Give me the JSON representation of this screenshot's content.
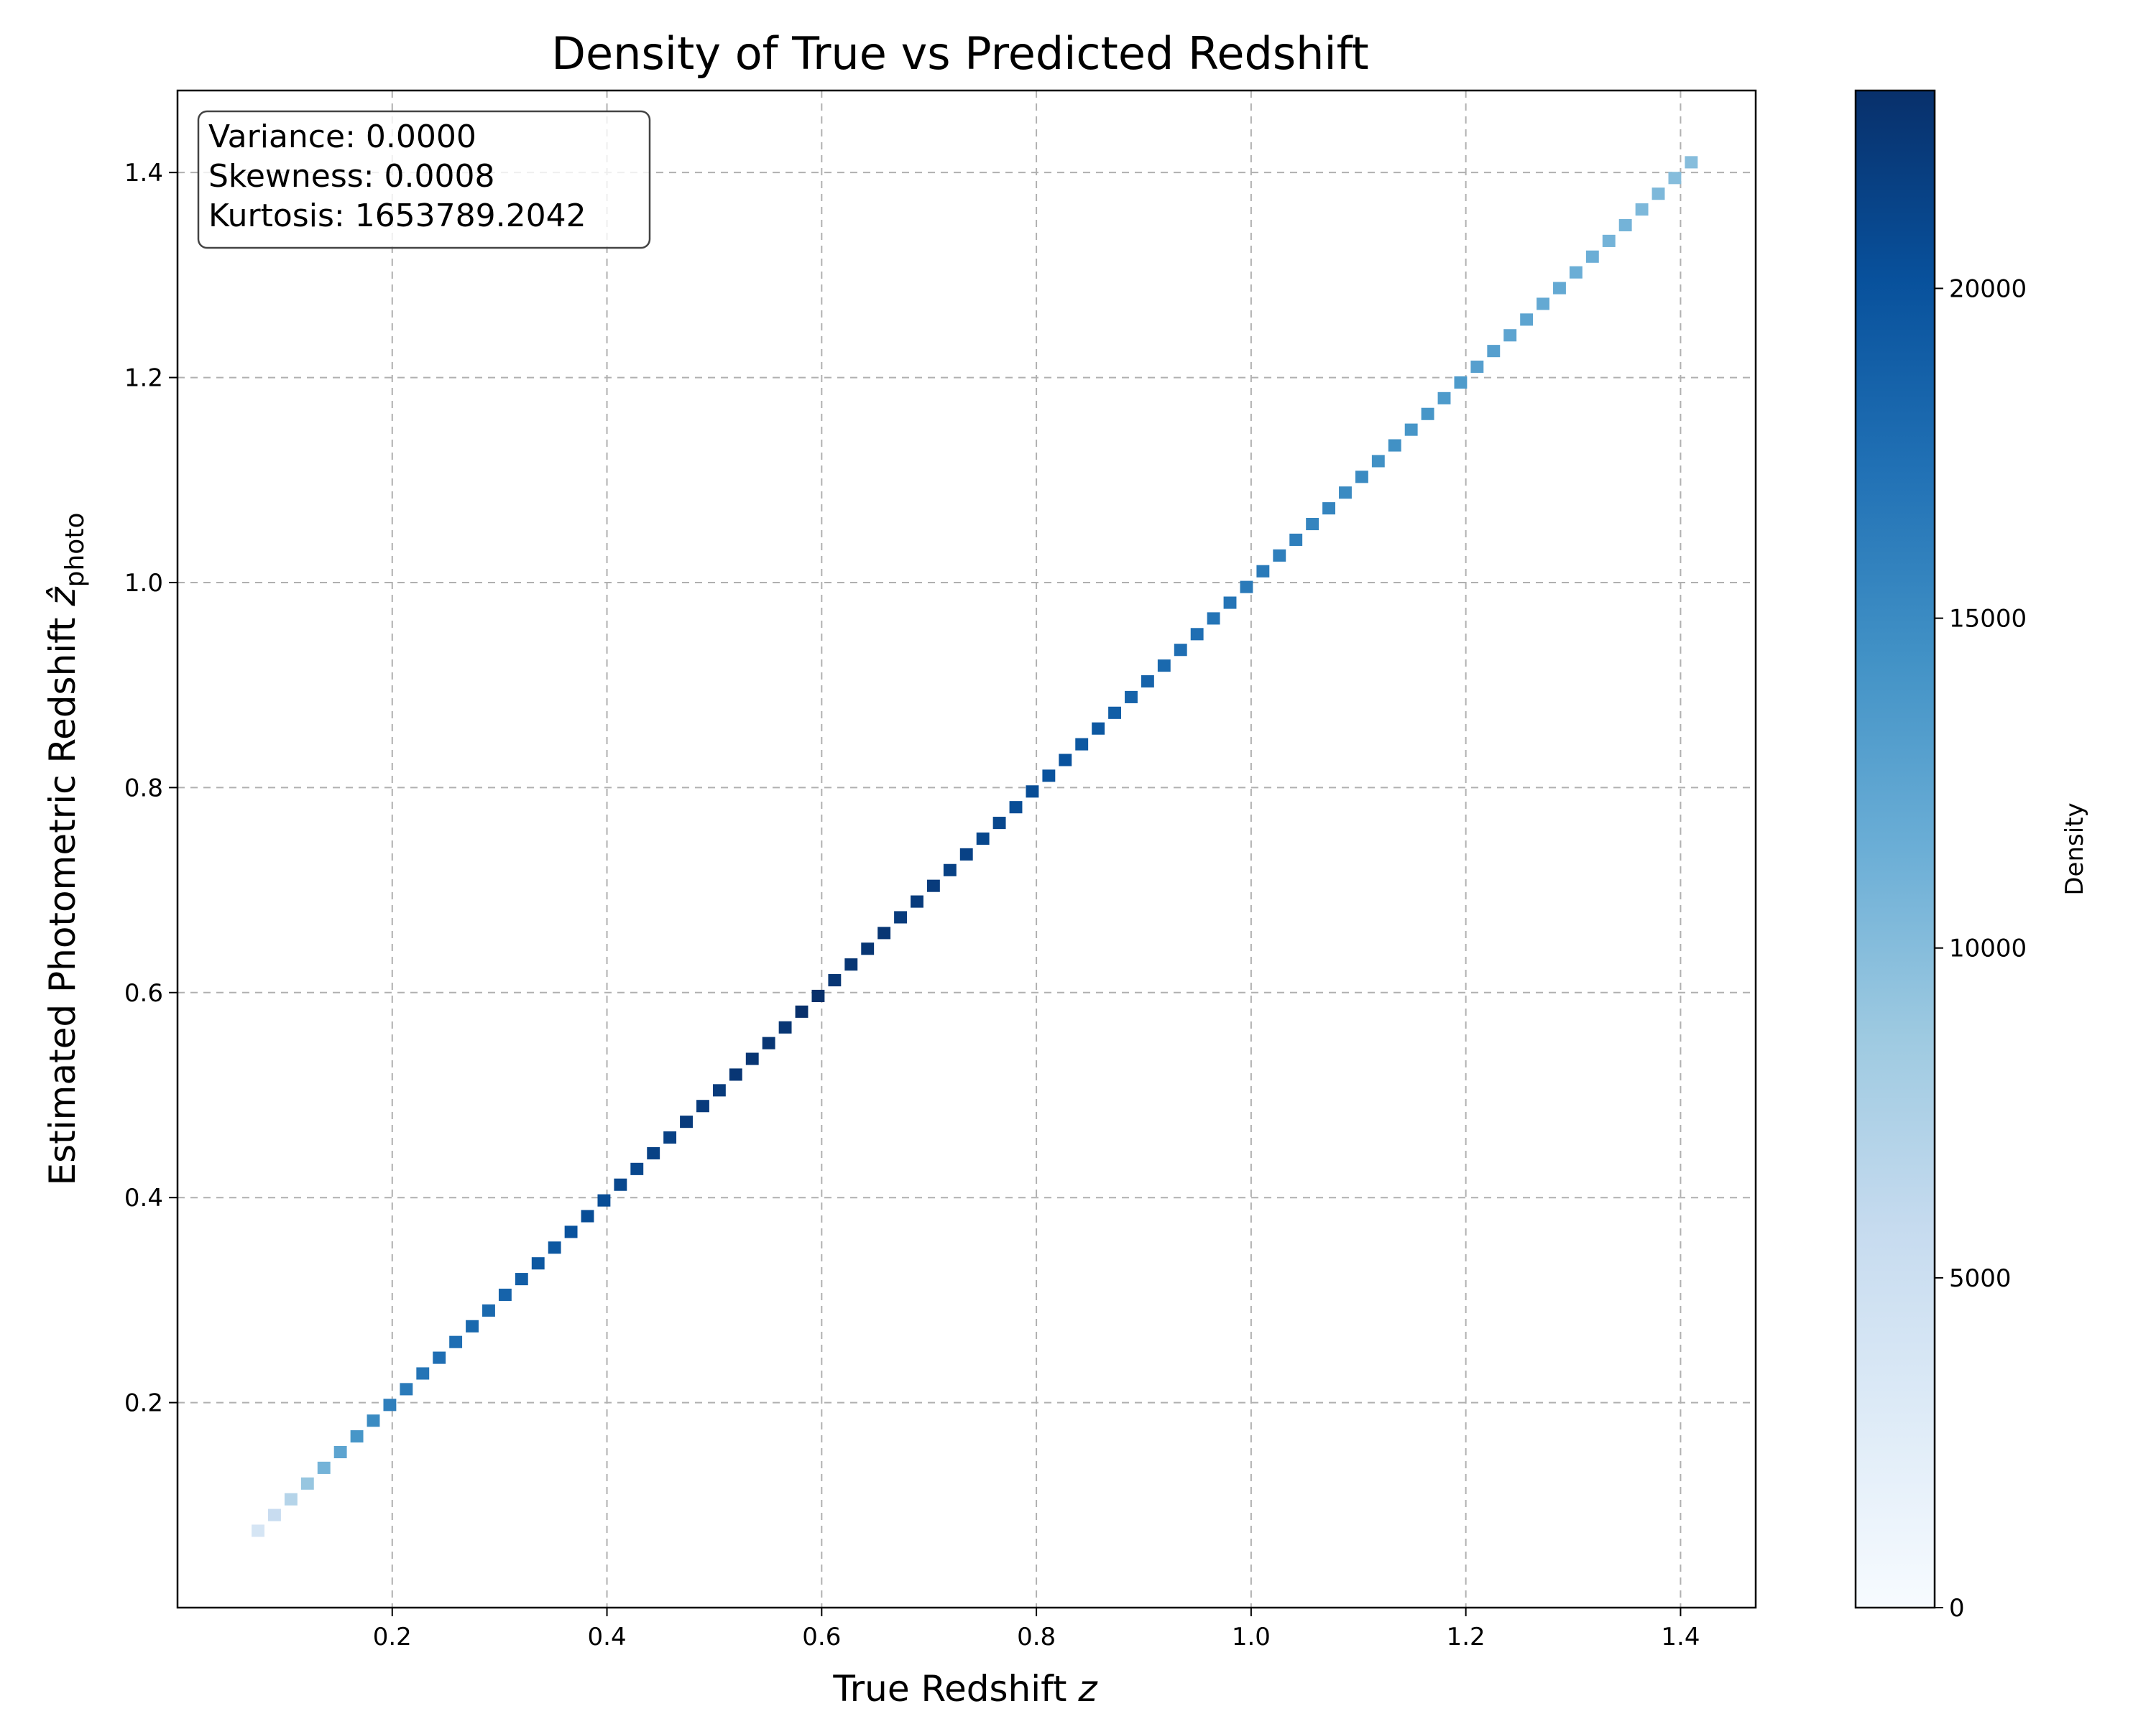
{
  "chart_data": {
    "type": "heatmap",
    "title": "Density of True vs Predicted Redshift",
    "xlabel": "True Redshift",
    "xlabel_var": "z",
    "ylabel": "Estimated Photometric Redshift",
    "ylabel_var": "ẑ",
    "ylabel_sub": "photo",
    "xlim": [
      0.0,
      1.47
    ],
    "ylim": [
      0.0,
      1.48
    ],
    "xticks": [
      0.2,
      0.4,
      0.6,
      0.8,
      1.0,
      1.2,
      1.4
    ],
    "xtick_labels": [
      "0.2",
      "0.4",
      "0.6",
      "0.8",
      "1.0",
      "1.2",
      "1.4"
    ],
    "yticks": [
      0.2,
      0.4,
      0.6,
      0.8,
      1.0,
      1.2,
      1.4
    ],
    "ytick_labels": [
      "0.2",
      "0.4",
      "0.6",
      "0.8",
      "1.0",
      "1.2",
      "1.4"
    ],
    "grid": true,
    "colormap": "Blues",
    "colorbar": {
      "label": "Density",
      "min": 0,
      "max": 23000,
      "ticks": [
        0,
        5000,
        10000,
        15000,
        20000
      ],
      "tick_labels": [
        "0",
        "5000",
        "10000",
        "15000",
        "20000"
      ],
      "stops": [
        "#f7fbff",
        "#deebf7",
        "#c6dbef",
        "#9ecae1",
        "#6baed6",
        "#4292c6",
        "#2171b5",
        "#08519c",
        "#08306b"
      ]
    },
    "stats_box": {
      "lines": [
        "Variance: 0.0000",
        "Skewness: 0.0008",
        "Kurtosis: 1653789.2042"
      ]
    },
    "bins": {
      "z_start": 0.075,
      "z_end": 1.41,
      "densities": [
        4000,
        5500,
        7000,
        9000,
        11000,
        12500,
        14000,
        15000,
        16000,
        16500,
        17000,
        17500,
        17500,
        18000,
        18000,
        18500,
        19000,
        19500,
        19500,
        20000,
        20500,
        20500,
        21000,
        21000,
        21500,
        21500,
        22000,
        22000,
        22000,
        22500,
        22500,
        22500,
        22500,
        23000,
        23000,
        22500,
        22500,
        22500,
        22500,
        22000,
        22000,
        22000,
        21500,
        21500,
        21000,
        21000,
        20500,
        20500,
        20000,
        20000,
        19500,
        19500,
        19000,
        18500,
        18500,
        18000,
        17500,
        17500,
        17000,
        17000,
        16500,
        16500,
        16000,
        16000,
        15500,
        15500,
        15000,
        15000,
        14500,
        14500,
        14000,
        14000,
        13500,
        13500,
        13000,
        13000,
        12500,
        12500,
        12000,
        12000,
        11500,
        11500,
        11000,
        11000,
        10500,
        10500,
        10000,
        10000
      ]
    }
  }
}
